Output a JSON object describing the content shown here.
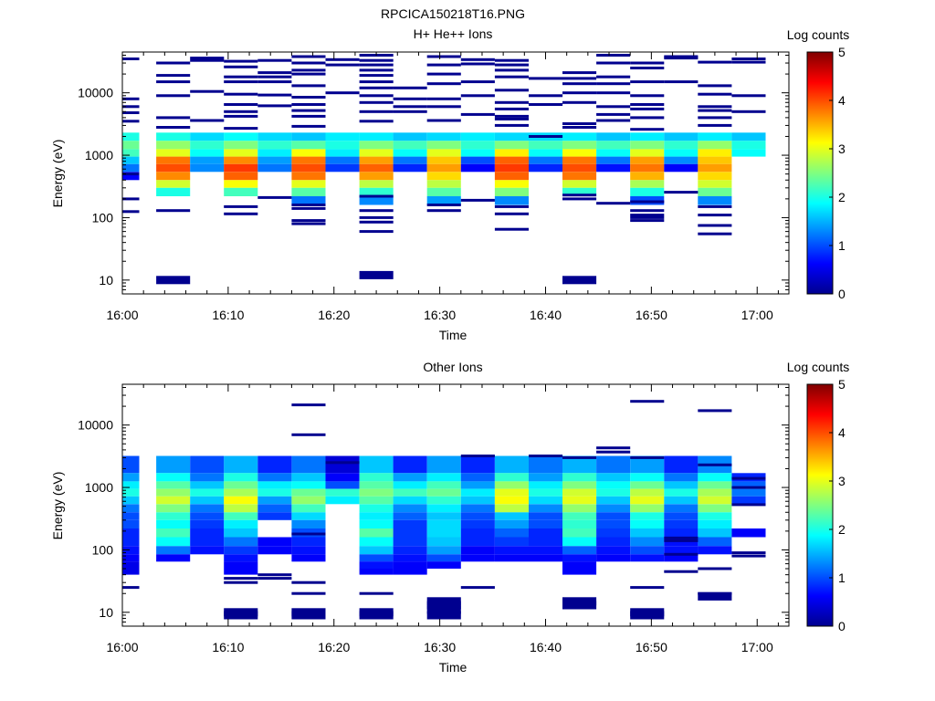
{
  "figure_title": "RPCICA150218T16.PNG",
  "chart_data": [
    {
      "type": "heatmap",
      "title": "H+ He++ Ions",
      "xlabel": "Time",
      "ylabel": "Energy (eV)",
      "y_scale": "log",
      "ylim": [
        6,
        45000
      ],
      "x_tick_labels": [
        "16:00",
        "16:10",
        "16:20",
        "16:30",
        "16:40",
        "16:50",
        "17:00"
      ],
      "x_tick_minutes": [
        0,
        10,
        20,
        30,
        40,
        50,
        60
      ],
      "xlim_minutes": [
        0,
        63
      ],
      "y_tick_values": [
        10,
        100,
        1000,
        10000
      ],
      "y_tick_labels": [
        "10",
        "100",
        "1000",
        "10000"
      ],
      "colorbar": {
        "label": "Log counts",
        "range": [
          0,
          5
        ],
        "tick_labels": [
          "0",
          "1",
          "2",
          "3",
          "4",
          "5"
        ]
      },
      "time_bins_start_minutes": [
        -1.6,
        3.2,
        6.4,
        9.6,
        12.8,
        16.0,
        19.2,
        22.4,
        25.6,
        28.8,
        32.0,
        35.2,
        38.4,
        41.6,
        44.8,
        48.0,
        51.2,
        54.4,
        57.6
      ],
      "bin_width_minutes": 3.2,
      "bands": [
        {
          "e_lo": 1700,
          "e_hi": 2300,
          "values": [
            2.0,
            2.0,
            1.7,
            1.9,
            1.7,
            1.6,
            1.8,
            1.8,
            1.6,
            1.7,
            1.8,
            1.7,
            1.7,
            1.8,
            1.6,
            1.8,
            1.6,
            1.8,
            1.6
          ]
        },
        {
          "e_lo": 1250,
          "e_hi": 1700,
          "values": [
            2.4,
            2.6,
            2.1,
            2.5,
            2.1,
            2.3,
            2.0,
            2.5,
            2.2,
            2.5,
            2.1,
            2.5,
            2.2,
            2.5,
            2.2,
            2.5,
            2.1,
            2.6,
            2.0
          ]
        },
        {
          "e_lo": 950,
          "e_hi": 1250,
          "values": [
            2.2,
            3.0,
            1.9,
            3.0,
            1.8,
            3.1,
            1.8,
            3.0,
            1.9,
            3.0,
            1.9,
            3.2,
            1.9,
            3.1,
            1.9,
            3.0,
            1.9,
            3.2,
            1.9
          ]
        },
        {
          "e_lo": 720,
          "e_hi": 950,
          "values": [
            1.6,
            3.8,
            1.4,
            3.7,
            1.4,
            3.8,
            1.2,
            3.6,
            1.2,
            3.4,
            1.0,
            3.9,
            1.2,
            3.8,
            1.2,
            3.6,
            1.3,
            3.4,
            0.0
          ]
        },
        {
          "e_lo": 540,
          "e_hi": 720,
          "values": [
            1.2,
            4.0,
            1.3,
            4.1,
            1.2,
            4.0,
            0.9,
            3.9,
            0.8,
            3.6,
            0.6,
            4.1,
            0.8,
            4.0,
            0.7,
            3.8,
            0.6,
            3.6,
            0.0
          ]
        },
        {
          "e_lo": 400,
          "e_hi": 540,
          "values": [
            0.6,
            3.7,
            0.0,
            3.9,
            0.0,
            3.8,
            0.0,
            3.6,
            0.0,
            3.3,
            0.0,
            3.9,
            0.0,
            3.8,
            0.0,
            3.5,
            0.0,
            3.3,
            0.0
          ]
        },
        {
          "e_lo": 300,
          "e_hi": 400,
          "values": [
            0.0,
            2.9,
            0.0,
            3.1,
            0.0,
            3.0,
            0.0,
            2.8,
            0.0,
            2.8,
            0.0,
            3.1,
            0.0,
            2.9,
            0.0,
            2.7,
            0.0,
            2.9,
            0.0
          ]
        },
        {
          "e_lo": 220,
          "e_hi": 300,
          "values": [
            0.0,
            2.0,
            0.0,
            2.2,
            0.0,
            2.3,
            0.0,
            2.1,
            0.0,
            2.3,
            0.0,
            2.5,
            0.0,
            2.1,
            0.0,
            2.0,
            0.0,
            2.4,
            0.0
          ]
        },
        {
          "e_lo": 160,
          "e_hi": 220,
          "values": [
            0.0,
            0.0,
            0.0,
            0.0,
            0.0,
            1.2,
            0.0,
            1.3,
            0.0,
            1.4,
            0.0,
            1.3,
            0.0,
            0.0,
            0.0,
            1.0,
            0.0,
            1.3,
            0.0
          ]
        }
      ],
      "lines": [
        {
          "t0": -1.6,
          "t1": 1.6,
          "e": [
            35000,
            8000,
            6000,
            4800,
            3500,
            500,
            200,
            125
          ]
        },
        {
          "t0": 3.2,
          "t1": 6.4,
          "e": [
            30000,
            19000,
            15000,
            9000,
            4000,
            2800,
            130,
            10
          ]
        },
        {
          "t0": 6.4,
          "t1": 9.6,
          "e": [
            36000,
            33000,
            10500,
            3600
          ]
        },
        {
          "t0": 9.6,
          "t1": 12.8,
          "e": [
            32000,
            26000,
            18000,
            15000,
            9500,
            6500,
            5000,
            4200,
            2700,
            150,
            115
          ]
        },
        {
          "t0": 12.8,
          "t1": 16.0,
          "e": [
            33000,
            21000,
            18000,
            15000,
            9200,
            6200,
            210
          ]
        },
        {
          "t0": 16.0,
          "t1": 19.2,
          "e": [
            38000,
            30000,
            23000,
            20000,
            13000,
            8500,
            6500,
            5200,
            4200,
            2900,
            160,
            140,
            90,
            80
          ]
        },
        {
          "t0": 19.2,
          "t1": 22.4,
          "e": [
            34000,
            28000,
            10000
          ]
        },
        {
          "t0": 22.4,
          "t1": 25.6,
          "e": [
            40000,
            33000,
            28000,
            23000,
            19000,
            15000,
            12000,
            9000,
            7000,
            5000,
            3500,
            220,
            130,
            100,
            85,
            60,
            12
          ]
        },
        {
          "t0": 25.6,
          "t1": 28.8,
          "e": [
            12000,
            8000,
            6000,
            5000
          ]
        },
        {
          "t0": 28.8,
          "t1": 32.0,
          "e": [
            38000,
            28000,
            20000,
            14000,
            8000,
            6000,
            3600,
            160,
            130
          ]
        },
        {
          "t0": 32.0,
          "t1": 35.2,
          "e": [
            34000,
            29000,
            15000,
            9000,
            4500,
            190
          ]
        },
        {
          "t0": 35.2,
          "t1": 38.4,
          "e": [
            33000,
            28000,
            23000,
            18000,
            11000,
            7000,
            5500,
            4200,
            3800,
            3000,
            150,
            115,
            65
          ]
        },
        {
          "t0": 38.4,
          "t1": 41.6,
          "e": [
            17000,
            9000,
            6500,
            2000
          ]
        },
        {
          "t0": 41.6,
          "t1": 44.8,
          "e": [
            21000,
            17000,
            14000,
            10000,
            7000,
            3200,
            2800,
            230,
            200,
            10
          ]
        },
        {
          "t0": 44.8,
          "t1": 48.0,
          "e": [
            40000,
            30000,
            18000,
            14000,
            10000,
            6000,
            4500,
            3600,
            170
          ]
        },
        {
          "t0": 48.0,
          "t1": 51.2,
          "e": [
            30000,
            25000,
            15000,
            9000,
            6500,
            5500,
            4000,
            2600,
            180,
            130,
            110,
            100,
            90
          ]
        },
        {
          "t0": 51.2,
          "t1": 54.4,
          "e": [
            38000,
            36000,
            15000,
            255
          ]
        },
        {
          "t0": 54.4,
          "t1": 57.6,
          "e": [
            31000,
            13000,
            9500,
            6000,
            5200,
            4000,
            3000,
            150,
            110,
            75,
            55
          ]
        },
        {
          "t0": 57.6,
          "t1": 60.8,
          "e": [
            35000,
            31000,
            9000,
            5000
          ]
        }
      ]
    },
    {
      "type": "heatmap",
      "title": "Other Ions",
      "xlabel": "Time",
      "ylabel": "Energy (eV)",
      "y_scale": "log",
      "ylim": [
        6,
        45000
      ],
      "x_tick_labels": [
        "16:00",
        "16:10",
        "16:20",
        "16:30",
        "16:40",
        "16:50",
        "17:00"
      ],
      "x_tick_minutes": [
        0,
        10,
        20,
        30,
        40,
        50,
        60
      ],
      "xlim_minutes": [
        0,
        63
      ],
      "y_tick_values": [
        10,
        100,
        1000,
        10000
      ],
      "y_tick_labels": [
        "10",
        "100",
        "1000",
        "10000"
      ],
      "colorbar": {
        "label": "Log counts",
        "range": [
          0,
          5
        ],
        "tick_labels": [
          "0",
          "1",
          "2",
          "3",
          "4",
          "5"
        ]
      },
      "time_bins_start_minutes": [
        -1.6,
        3.2,
        6.4,
        9.6,
        12.8,
        16.0,
        19.2,
        22.4,
        25.6,
        28.8,
        32.0,
        35.2,
        38.4,
        41.6,
        44.8,
        48.0,
        51.2,
        54.4,
        57.6
      ],
      "bin_width_minutes": 3.2,
      "bands": [
        {
          "e_lo": 1700,
          "e_hi": 3200,
          "values": [
            1.0,
            1.4,
            1.0,
            1.5,
            0.8,
            1.2,
            0.4,
            1.6,
            0.8,
            1.4,
            0.8,
            1.5,
            1.2,
            1.5,
            1.2,
            1.4,
            0.8,
            1.3,
            0.0
          ]
        },
        {
          "e_lo": 1250,
          "e_hi": 1700,
          "values": [
            1.4,
            1.9,
            1.2,
            2.0,
            1.2,
            1.6,
            0.6,
            2.1,
            1.4,
            1.8,
            1.1,
            2.1,
            1.4,
            2.1,
            1.6,
            1.9,
            1.2,
            1.9,
            0.8
          ]
        },
        {
          "e_lo": 950,
          "e_hi": 1250,
          "values": [
            1.8,
            2.3,
            1.6,
            2.4,
            1.8,
            1.9,
            1.0,
            2.3,
            1.8,
            2.2,
            1.4,
            2.6,
            1.8,
            2.5,
            1.9,
            2.4,
            1.6,
            2.4,
            1.1
          ]
        },
        {
          "e_lo": 720,
          "e_hi": 950,
          "values": [
            2.0,
            2.6,
            2.0,
            2.7,
            2.0,
            2.4,
            2.1,
            2.5,
            2.2,
            2.4,
            1.8,
            3.0,
            2.0,
            2.9,
            2.0,
            2.8,
            2.0,
            2.7,
            1.2
          ]
        },
        {
          "e_lo": 540,
          "e_hi": 720,
          "values": [
            1.6,
            2.9,
            1.6,
            3.1,
            1.4,
            2.6,
            1.8,
            2.3,
            1.7,
            2.1,
            1.6,
            3.1,
            1.7,
            3.0,
            1.6,
            3.0,
            1.6,
            2.9,
            0.9
          ]
        },
        {
          "e_lo": 400,
          "e_hi": 540,
          "values": [
            1.2,
            2.5,
            1.2,
            2.8,
            1.1,
            2.2,
            0.0,
            2.0,
            1.3,
            1.8,
            1.2,
            2.8,
            1.3,
            2.6,
            1.3,
            2.6,
            1.2,
            2.5,
            0.0
          ]
        },
        {
          "e_lo": 300,
          "e_hi": 400,
          "values": [
            1.0,
            2.1,
            1.0,
            2.2,
            0.9,
            1.7,
            0.0,
            1.8,
            1.1,
            1.6,
            1.0,
            1.6,
            1.0,
            2.2,
            1.0,
            2.0,
            1.0,
            2.0,
            0.0
          ]
        },
        {
          "e_lo": 220,
          "e_hi": 300,
          "values": [
            1.0,
            1.9,
            0.9,
            1.8,
            0.0,
            1.3,
            0.0,
            1.9,
            0.9,
            1.7,
            0.9,
            1.4,
            1.0,
            2.1,
            1.0,
            1.9,
            0.9,
            1.8,
            0.0
          ]
        },
        {
          "e_lo": 160,
          "e_hi": 220,
          "values": [
            0.8,
            2.2,
            0.8,
            1.6,
            0.0,
            1.0,
            0.0,
            2.3,
            0.9,
            1.7,
            0.8,
            1.1,
            0.8,
            2.2,
            0.9,
            1.6,
            0.8,
            1.6,
            0.6
          ]
        },
        {
          "e_lo": 115,
          "e_hi": 160,
          "values": [
            0.8,
            1.9,
            0.8,
            1.2,
            0.6,
            0.8,
            0.0,
            1.9,
            0.9,
            1.6,
            0.8,
            0.9,
            0.8,
            1.9,
            0.8,
            1.3,
            0.7,
            1.1,
            0.0
          ]
        },
        {
          "e_lo": 85,
          "e_hi": 115,
          "values": [
            0.7,
            1.2,
            0.7,
            0.9,
            0.6,
            0.7,
            0.0,
            1.6,
            0.8,
            1.4,
            0.6,
            0.7,
            0.7,
            1.1,
            0.7,
            1.0,
            0.7,
            0.7,
            0.0
          ]
        },
        {
          "e_lo": 65,
          "e_hi": 85,
          "values": [
            0.6,
            0.6,
            0.0,
            0.7,
            0.0,
            0.6,
            0.0,
            1.0,
            0.7,
            1.0,
            0.6,
            0.6,
            0.6,
            0.7,
            0.6,
            0.7,
            0.6,
            0.0,
            0.0
          ]
        },
        {
          "e_lo": 50,
          "e_hi": 65,
          "values": [
            0.5,
            0.0,
            0.0,
            0.6,
            0.0,
            0.0,
            0.0,
            0.7,
            0.6,
            0.6,
            0.0,
            0.0,
            0.0,
            0.6,
            0.0,
            0.0,
            0.0,
            0.0,
            0.0
          ]
        },
        {
          "e_lo": 40,
          "e_hi": 50,
          "values": [
            0.5,
            0.0,
            0.0,
            0.6,
            0.0,
            0.0,
            0.0,
            0.6,
            0.6,
            0.0,
            0.0,
            0.0,
            0.0,
            0.6,
            0.0,
            0.0,
            0.0,
            0.0,
            0.0
          ]
        }
      ],
      "lines": [
        {
          "t0": -1.6,
          "t1": 1.6,
          "e": [
            25
          ]
        },
        {
          "t0": 9.6,
          "t1": 12.8,
          "e": [
            10,
            9,
            30,
            35
          ]
        },
        {
          "t0": 12.8,
          "t1": 16.0,
          "e": [
            35,
            40
          ]
        },
        {
          "t0": 16.0,
          "t1": 19.2,
          "e": [
            21000,
            7000,
            180,
            30,
            20,
            10,
            9
          ]
        },
        {
          "t0": 19.2,
          "t1": 22.4,
          "e": [
            2500
          ]
        },
        {
          "t0": 22.4,
          "t1": 25.6,
          "e": [
            20,
            10,
            9
          ]
        },
        {
          "t0": 28.8,
          "t1": 32.0,
          "e": [
            15,
            13,
            11,
            9
          ]
        },
        {
          "t0": 32.0,
          "t1": 35.2,
          "e": [
            3200,
            25
          ]
        },
        {
          "t0": 38.4,
          "t1": 41.6,
          "e": [
            3200
          ]
        },
        {
          "t0": 41.6,
          "t1": 44.8,
          "e": [
            3000,
            15,
            13
          ]
        },
        {
          "t0": 44.8,
          "t1": 48.0,
          "e": [
            4300,
            3700
          ]
        },
        {
          "t0": 48.0,
          "t1": 51.2,
          "e": [
            24000,
            3000,
            25,
            10,
            9
          ]
        },
        {
          "t0": 51.2,
          "t1": 54.4,
          "e": [
            155,
            140,
            85,
            45
          ]
        },
        {
          "t0": 54.4,
          "t1": 57.6,
          "e": [
            17000,
            2300,
            50,
            20,
            18
          ]
        },
        {
          "t0": 57.6,
          "t1": 60.8,
          "e": [
            1400,
            1000,
            530,
            90,
            80
          ]
        }
      ]
    }
  ]
}
